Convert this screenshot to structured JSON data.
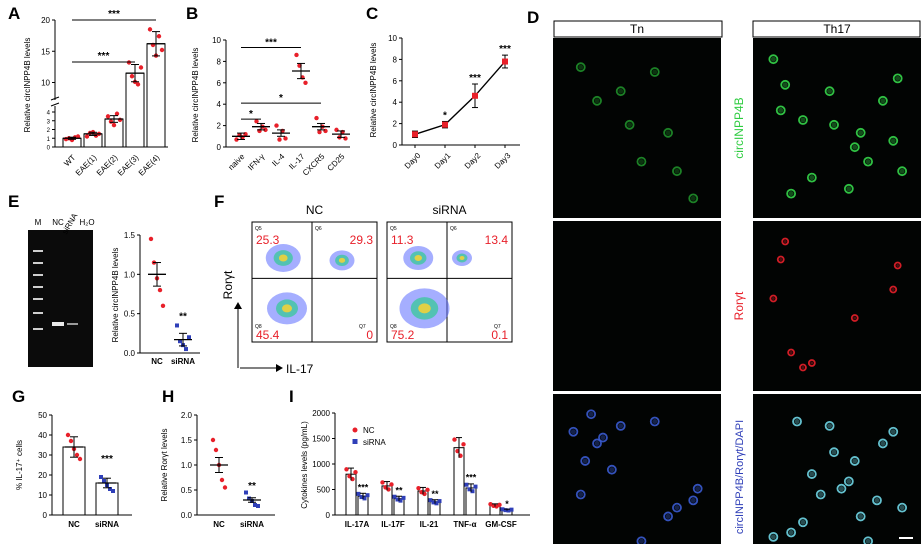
{
  "figure": {
    "panel_letters": [
      "A",
      "B",
      "C",
      "D",
      "E",
      "F",
      "G",
      "H",
      "I"
    ]
  },
  "A": {
    "chart_data": {
      "type": "bar",
      "categories": [
        "WT",
        "EAE(1)",
        "EAE(2)",
        "EAE(3)",
        "EAE(4)"
      ],
      "values": [
        1.0,
        1.5,
        3.2,
        11.5,
        16.2
      ],
      "points": [
        [
          0.9,
          1.0,
          0.8,
          1.1,
          1.2
        ],
        [
          1.2,
          1.6,
          1.7,
          1.3,
          1.5
        ],
        [
          3.5,
          2.9,
          2.5,
          3.8,
          3.1
        ],
        [
          13.2,
          11.0,
          10.1,
          9.7,
          12.4
        ],
        [
          18.5,
          16.0,
          14.3,
          17.4,
          15.2
        ]
      ],
      "ylabel": "Relative circINPP4B levels",
      "yticks_top": [
        "10",
        "15",
        "20"
      ],
      "yticks_bottom": [
        "0",
        "1",
        "2",
        "3",
        "4"
      ],
      "significance": [
        "***",
        "***"
      ]
    }
  },
  "B": {
    "chart_data": {
      "type": "bar",
      "categories": [
        "naive",
        "IFN-γ",
        "IL-4",
        "IL-17",
        "CXCR5",
        "CD25"
      ],
      "values": [
        1.0,
        1.9,
        1.3,
        7.1,
        1.9,
        1.2
      ],
      "points": [
        [
          0.7,
          1.1,
          0.9,
          1.2
        ],
        [
          2.4,
          1.5,
          1.9,
          1.6
        ],
        [
          2.0,
          0.7,
          1.5,
          0.8
        ],
        [
          8.6,
          7.6,
          6.5,
          6.0
        ],
        [
          2.7,
          1.4,
          1.9,
          1.5
        ],
        [
          1.6,
          0.9,
          1.4,
          0.8
        ]
      ],
      "ylabel": "Relative circINPP4B levels",
      "ylim": [
        0,
        10
      ],
      "yticks": [
        "0",
        "2",
        "4",
        "6",
        "8",
        "10"
      ],
      "significance": [
        "*",
        "***",
        "*"
      ]
    }
  },
  "C": {
    "chart_data": {
      "type": "line",
      "categories": [
        "Day0",
        "Day1",
        "Day2",
        "Day3"
      ],
      "values": [
        1.0,
        1.9,
        4.6,
        7.8
      ],
      "errors": [
        0.3,
        0.3,
        1.1,
        0.6
      ],
      "ylabel": "Relative circINPP4B levels",
      "ylim": [
        0,
        10
      ],
      "yticks": [
        "0",
        "2",
        "4",
        "6",
        "8",
        "10"
      ],
      "significance": [
        "*",
        "***",
        "***"
      ]
    }
  },
  "D": {
    "col_headers": [
      "Tn",
      "Th17"
    ],
    "row_labels": [
      "circINPP4B",
      "Rorγt",
      "circINPP4B/Rorγt/DAPI"
    ],
    "colors": {
      "green": "#2ecc40",
      "red": "#e8202a",
      "blue": "#2f3fb8"
    }
  },
  "E": {
    "gel_lanes": [
      "M",
      "NC",
      "siRNA",
      "H₂O"
    ],
    "chart_data": {
      "type": "bar",
      "categories": [
        "NC",
        "siRNA"
      ],
      "values": [
        1.0,
        0.17
      ],
      "points": [
        [
          1.45,
          1.15,
          0.95,
          0.8,
          0.6
        ],
        [
          0.35,
          0.15,
          0.1,
          0.05,
          0.2
        ]
      ],
      "ylabel": "Relative circINPP4B levels",
      "ylim": [
        0,
        1.5
      ],
      "yticks": [
        "0.0",
        "0.5",
        "1.0",
        "1.5"
      ],
      "significance": [
        "**"
      ]
    }
  },
  "F": {
    "titles": [
      "NC",
      "siRNA"
    ],
    "xlabel": "IL-17",
    "ylabel": "Rorγt",
    "quadrants": [
      {
        "Q5": "25.3",
        "Q6": "29.3",
        "Q8": "45.4",
        "Q7": "0"
      },
      {
        "Q5": "11.3",
        "Q6": "13.4",
        "Q8": "75.2",
        "Q7": "0.1"
      }
    ],
    "quad_names": [
      "Q5",
      "Q6",
      "Q8",
      "Q7"
    ]
  },
  "G": {
    "chart_data": {
      "type": "bar",
      "categories": [
        "NC",
        "siRNA"
      ],
      "values": [
        34,
        16
      ],
      "points": [
        [
          40,
          37,
          33,
          30,
          28
        ],
        [
          19,
          17,
          15,
          13,
          12
        ]
      ],
      "ylabel": "% IL-17⁺ cells",
      "ylim": [
        0,
        50
      ],
      "yticks": [
        "0",
        "10",
        "20",
        "30",
        "40",
        "50"
      ],
      "significance": [
        "***"
      ]
    }
  },
  "H": {
    "chart_data": {
      "type": "bar",
      "categories": [
        "NC",
        "siRNA"
      ],
      "values": [
        1.0,
        0.3
      ],
      "points": [
        [
          1.5,
          1.3,
          1.0,
          0.7,
          0.55
        ],
        [
          0.45,
          0.33,
          0.28,
          0.2,
          0.18
        ]
      ],
      "ylabel": "Relative Rorγt levels",
      "ylim": [
        0,
        2.0
      ],
      "yticks": [
        "0.0",
        "0.5",
        "1.0",
        "1.5",
        "2.0"
      ],
      "significance": [
        "**"
      ]
    }
  },
  "I": {
    "chart_data": {
      "type": "bar",
      "categories": [
        "IL-17A",
        "IL-17F",
        "IL-21",
        "TNF-α",
        "GM-CSF"
      ],
      "series": [
        {
          "name": "NC",
          "values": [
            800,
            570,
            470,
            1320,
            190
          ]
        },
        {
          "name": "siRNA",
          "values": [
            370,
            320,
            260,
            530,
            100
          ]
        }
      ],
      "ylabel": "Cytokines levels (pg/mL)",
      "ylim": [
        0,
        2000
      ],
      "yticks": [
        "0",
        "500",
        "1000",
        "1500",
        "2000"
      ],
      "significance": [
        "***",
        "**",
        "**",
        "***",
        "*"
      ]
    }
  }
}
